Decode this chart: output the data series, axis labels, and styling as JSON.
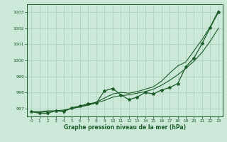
{
  "xlabel": "Graphe pression niveau de la mer (hPa)",
  "xlim": [
    -0.5,
    23.5
  ],
  "ylim": [
    996.5,
    1003.5
  ],
  "yticks": [
    997,
    998,
    999,
    1000,
    1001,
    1002,
    1003
  ],
  "xticks": [
    0,
    1,
    2,
    3,
    4,
    5,
    6,
    7,
    8,
    9,
    10,
    11,
    12,
    13,
    14,
    15,
    16,
    17,
    18,
    19,
    20,
    21,
    22,
    23
  ],
  "background_color": "#cce8d8",
  "grid_color": "#aaccbb",
  "line_color": "#1a5c28",
  "hours": [
    0,
    1,
    2,
    3,
    4,
    5,
    6,
    7,
    8,
    9,
    10,
    11,
    12,
    13,
    14,
    15,
    16,
    17,
    18,
    19,
    20,
    21,
    22,
    23
  ],
  "line_measured": [
    996.8,
    996.7,
    996.7,
    996.85,
    996.8,
    997.05,
    997.15,
    997.3,
    997.35,
    998.1,
    998.25,
    997.85,
    997.55,
    997.7,
    998.0,
    997.9,
    998.15,
    998.3,
    998.55,
    999.6,
    1000.15,
    1001.05,
    1002.05,
    1003.0
  ],
  "line_linear": [
    996.8,
    996.8,
    996.85,
    996.85,
    996.85,
    997.0,
    997.1,
    997.2,
    997.35,
    997.5,
    997.7,
    997.8,
    997.85,
    997.95,
    998.05,
    998.2,
    998.45,
    998.75,
    999.1,
    999.5,
    999.95,
    1000.5,
    1001.2,
    1002.0
  ],
  "line_upper": [
    996.8,
    996.75,
    996.8,
    996.85,
    996.9,
    997.0,
    997.1,
    997.25,
    997.4,
    997.65,
    997.9,
    998.0,
    997.95,
    998.05,
    998.2,
    998.35,
    998.7,
    999.2,
    999.65,
    999.9,
    1000.6,
    1001.3,
    1002.1,
    1003.1
  ]
}
